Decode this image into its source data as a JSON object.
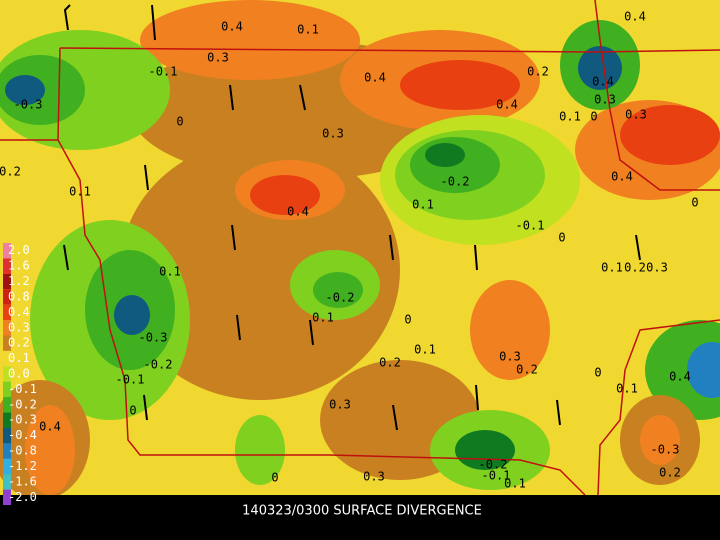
{
  "title": "140323/0300 SURFACE DIVERGENCE",
  "legend": [
    {
      "label": "2.0",
      "color": "#f080a0"
    },
    {
      "label": "1.6",
      "color": "#e03030"
    },
    {
      "label": "1.2",
      "color": "#a01010"
    },
    {
      "label": "0.8",
      "color": "#d02010"
    },
    {
      "label": "0.4",
      "color": "#e84010"
    },
    {
      "label": "0.3",
      "color": "#f08020"
    },
    {
      "label": "0.2",
      "color": "#c88020"
    },
    {
      "label": "0.1",
      "color": "#f0d830"
    },
    {
      "label": "0.0",
      "color": "#c0e020"
    },
    {
      "label": "-0.1",
      "color": "#80d020"
    },
    {
      "label": "-0.2",
      "color": "#40b020"
    },
    {
      "label": "-0.3",
      "color": "#107a20"
    },
    {
      "label": "-0.4",
      "color": "#105a80"
    },
    {
      "label": "-0.8",
      "color": "#2080c0"
    },
    {
      "label": "-1.2",
      "color": "#30b0e0"
    },
    {
      "label": "-1.6",
      "color": "#40c0c0"
    },
    {
      "label": "-2.0",
      "color": "#9040d0"
    }
  ],
  "contour_labels": [
    "0.4",
    "0.1",
    "0.3",
    "-0.1",
    "-0.3",
    "0",
    "0.4",
    "0.2",
    "0.4",
    "0.1",
    "0",
    "0.3",
    "0.3",
    "0.4",
    "0.4",
    "0.3",
    "0.2",
    "0.1",
    "0.4",
    "0.1",
    "-0.2",
    "-0.1",
    "0",
    "0.1",
    "0.2",
    "0.3",
    "0",
    "0.4",
    "0.1",
    "-0.2",
    "0.1",
    "0",
    "0.1",
    "-0.3",
    "-0.2",
    "-0.1",
    "0",
    "0.2",
    "0.3",
    "0.3",
    "0.2",
    "0",
    "0.1",
    "0.4",
    "-0.3",
    "0.2",
    "-0.2",
    "-0.1",
    "0.1",
    "0.3",
    "0",
    "0.4"
  ]
}
